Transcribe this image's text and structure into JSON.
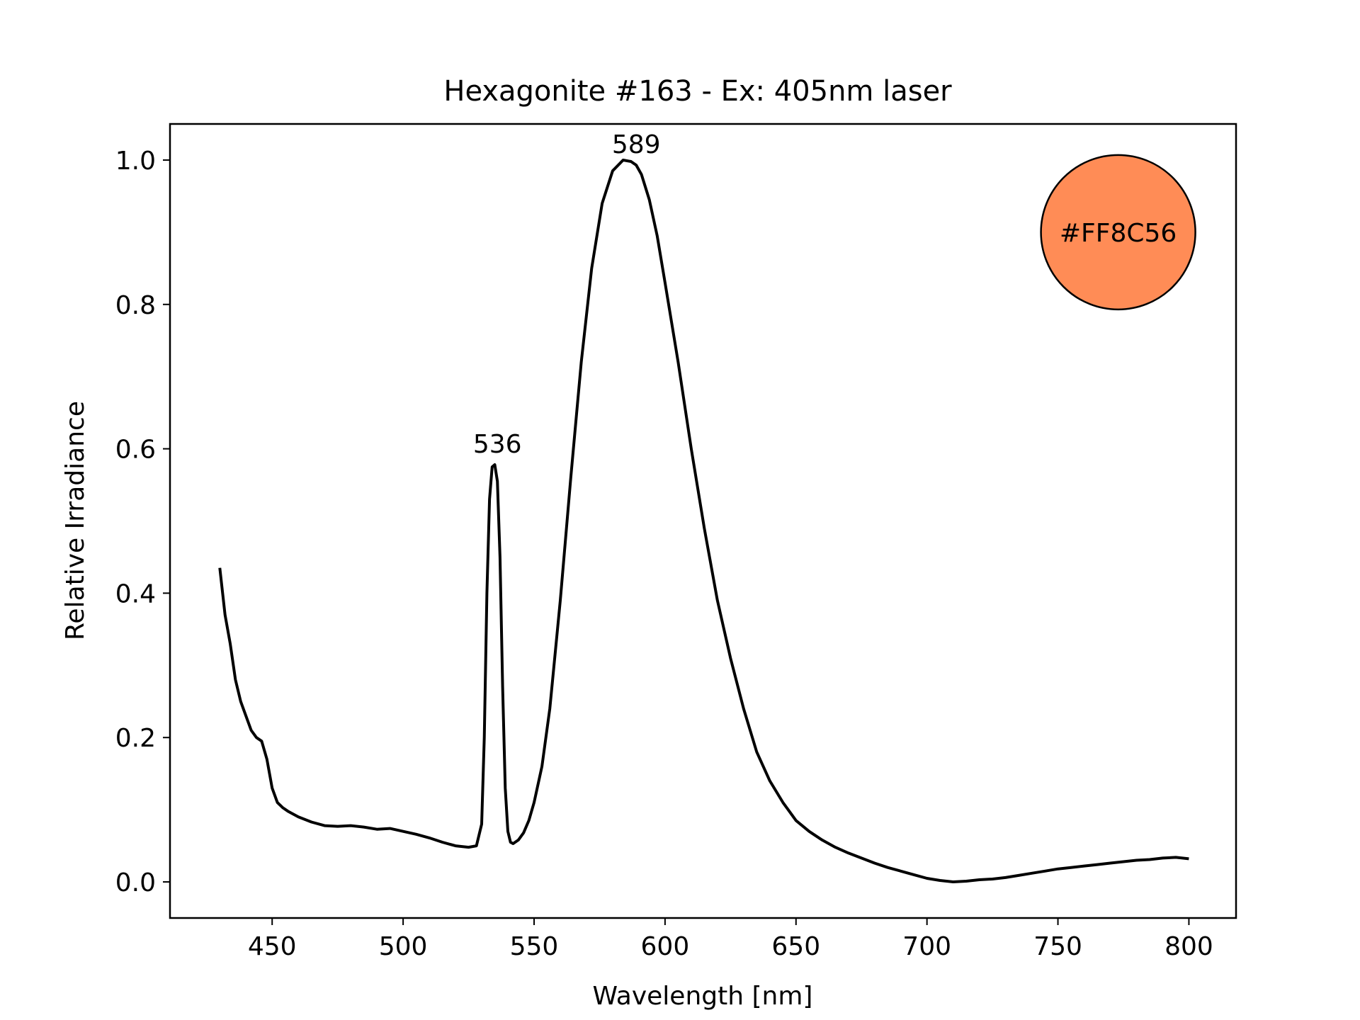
{
  "chart_data": {
    "type": "line",
    "title": "Hexagonite #163 - Ex: 405nm laser",
    "xlabel": "Wavelength [nm]",
    "ylabel": "Relative Irradiance",
    "xlim": [
      411,
      818
    ],
    "ylim": [
      -0.05,
      1.05
    ],
    "x_ticks": [
      450,
      500,
      550,
      600,
      650,
      700,
      750,
      800
    ],
    "x_tick_labels": [
      "450",
      "500",
      "550",
      "600",
      "650",
      "700",
      "750",
      "800"
    ],
    "y_ticks": [
      0.0,
      0.2,
      0.4,
      0.6,
      0.8,
      1.0
    ],
    "y_tick_labels": [
      "0.0",
      "0.2",
      "0.4",
      "0.6",
      "0.8",
      "1.0"
    ],
    "grid": false,
    "line_color": "#000000",
    "series": [
      {
        "x": [
          430,
          432,
          434,
          436,
          438,
          440,
          442,
          444,
          446,
          448,
          450,
          452,
          454,
          456,
          458,
          460,
          465,
          470,
          475,
          480,
          485,
          490,
          495,
          500,
          505,
          510,
          515,
          520,
          525,
          528,
          530,
          531,
          532,
          533,
          534,
          535,
          536,
          537,
          538,
          539,
          540,
          541,
          542,
          544,
          546,
          548,
          550,
          553,
          556,
          560,
          564,
          568,
          572,
          576,
          580,
          584,
          587,
          589,
          591,
          594,
          597,
          600,
          605,
          610,
          615,
          620,
          625,
          630,
          635,
          640,
          645,
          650,
          655,
          660,
          665,
          670,
          675,
          680,
          685,
          690,
          695,
          700,
          705,
          710,
          715,
          720,
          725,
          730,
          735,
          740,
          745,
          750,
          755,
          760,
          765,
          770,
          775,
          780,
          785,
          790,
          795,
          800
        ],
        "y": [
          0.435,
          0.37,
          0.33,
          0.28,
          0.25,
          0.23,
          0.21,
          0.2,
          0.195,
          0.17,
          0.13,
          0.11,
          0.103,
          0.098,
          0.094,
          0.09,
          0.083,
          0.078,
          0.077,
          0.078,
          0.076,
          0.073,
          0.074,
          0.07,
          0.066,
          0.061,
          0.055,
          0.05,
          0.048,
          0.05,
          0.08,
          0.2,
          0.4,
          0.53,
          0.575,
          0.578,
          0.555,
          0.45,
          0.27,
          0.13,
          0.07,
          0.055,
          0.053,
          0.058,
          0.068,
          0.085,
          0.11,
          0.16,
          0.24,
          0.39,
          0.56,
          0.72,
          0.85,
          0.94,
          0.985,
          1.0,
          0.998,
          0.993,
          0.98,
          0.945,
          0.895,
          0.83,
          0.72,
          0.6,
          0.49,
          0.39,
          0.31,
          0.24,
          0.18,
          0.14,
          0.11,
          0.085,
          0.07,
          0.058,
          0.048,
          0.04,
          0.033,
          0.026,
          0.02,
          0.015,
          0.01,
          0.005,
          0.002,
          0.0,
          0.001,
          0.003,
          0.004,
          0.006,
          0.009,
          0.012,
          0.015,
          0.018,
          0.02,
          0.022,
          0.024,
          0.026,
          0.028,
          0.03,
          0.031,
          0.033,
          0.034,
          0.032
        ]
      }
    ],
    "annotations": [
      {
        "text": "536",
        "x": 536,
        "y": 0.585
      },
      {
        "text": "589",
        "x": 589,
        "y": 1.0
      }
    ],
    "color_swatch": {
      "label": "#FF8C56",
      "color": "#FF8C56",
      "x": 773,
      "y": 0.9
    }
  }
}
